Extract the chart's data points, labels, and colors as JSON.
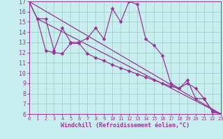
{
  "xlabel": "Windchill (Refroidissement éolien,°C)",
  "bg_color": "#c8eef0",
  "line_color": "#993399",
  "grid_color": "#99ccbb",
  "xmin": 0,
  "xmax": 23,
  "ymin": 6,
  "ymax": 17,
  "series": [
    {
      "x": [
        0,
        1,
        2,
        3,
        4,
        5,
        6,
        7,
        8,
        9,
        10,
        11,
        12,
        13,
        14,
        15,
        16,
        17,
        18,
        19,
        20,
        21,
        22,
        23
      ],
      "y": [
        17,
        15.3,
        15.3,
        12.2,
        14.4,
        13.0,
        13.0,
        13.4,
        14.4,
        13.3,
        16.3,
        15.0,
        17.0,
        16.7,
        13.3,
        12.7,
        11.7,
        9.0,
        8.5,
        9.3,
        7.5,
        7.5,
        6.2,
        6.0
      ],
      "marker": true,
      "lw": 0.9
    },
    {
      "x": [
        0,
        1,
        2,
        3,
        4,
        5,
        6,
        7,
        8,
        9,
        10,
        11,
        12,
        13,
        14,
        15,
        16,
        17,
        18,
        19,
        20,
        21,
        22,
        23
      ],
      "y": [
        17,
        15.3,
        12.2,
        12.0,
        11.9,
        12.9,
        12.9,
        11.9,
        11.5,
        11.2,
        10.8,
        10.5,
        10.2,
        9.9,
        9.6,
        9.3,
        9.0,
        8.7,
        8.5,
        9.0,
        8.5,
        7.5,
        6.3,
        6.0
      ],
      "marker": true,
      "lw": 0.9
    },
    {
      "x": [
        0,
        23
      ],
      "y": [
        17,
        6.0
      ],
      "marker": false,
      "lw": 0.9
    },
    {
      "x": [
        1,
        23
      ],
      "y": [
        15.3,
        6.0
      ],
      "marker": false,
      "lw": 0.9
    }
  ],
  "yticks": [
    6,
    7,
    8,
    9,
    10,
    11,
    12,
    13,
    14,
    15,
    16,
    17
  ],
  "xticks": [
    0,
    1,
    2,
    3,
    4,
    5,
    6,
    7,
    8,
    9,
    10,
    11,
    12,
    13,
    14,
    15,
    16,
    17,
    18,
    19,
    20,
    21,
    22,
    23
  ],
  "xlabel_fontsize": 6.0,
  "ytick_fontsize": 6.0,
  "xtick_fontsize": 5.0,
  "markersize": 2.5
}
